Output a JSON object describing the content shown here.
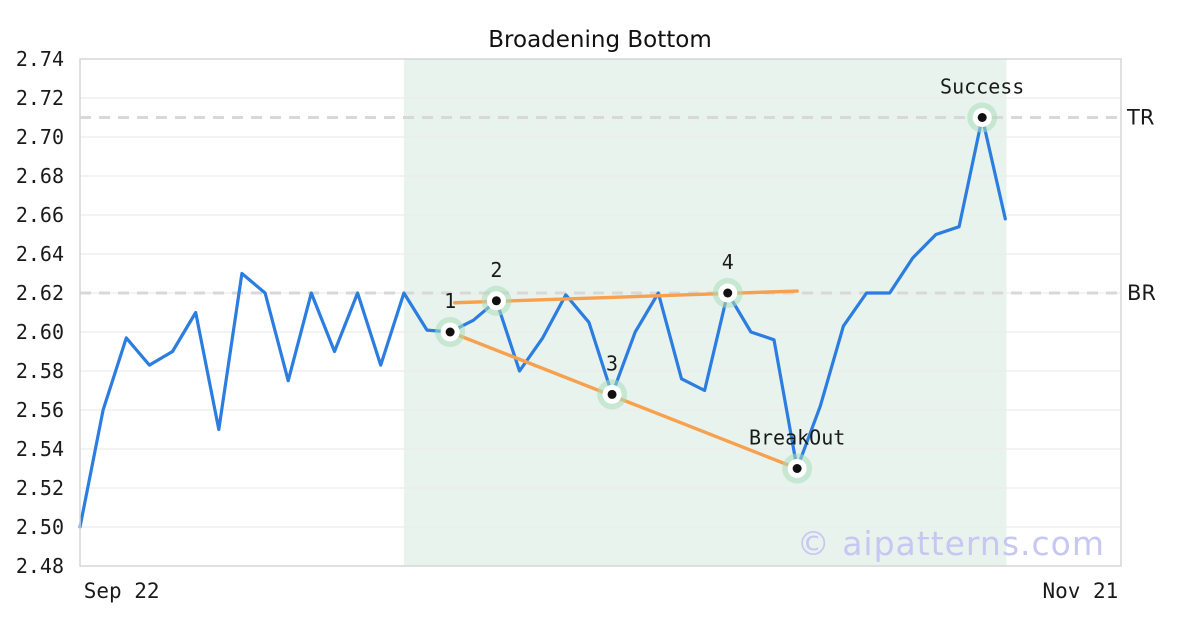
{
  "title": "Broadening Bottom",
  "watermark": "© aipatterns.com",
  "colors": {
    "price_line": "#2b7de0",
    "trendline": "#f7a14f",
    "pattern_region": "#e8f3ee",
    "level_dash": "#d8d8d8",
    "grid": "#ececec",
    "frame": "#d4d6d8",
    "marker_halo": "#a9dcbb",
    "marker_dot": "#111111",
    "text": "#1a1a1a",
    "watermark": "#c6c7f2"
  },
  "chart_data": {
    "type": "line",
    "title": "Broadening Bottom",
    "xlabel": "",
    "ylabel": "",
    "y_axis": {
      "min": 2.48,
      "max": 2.74,
      "step": 0.02,
      "decimals": 2
    },
    "x_axis": {
      "tick_labels": [
        {
          "label": "Sep 22",
          "pos": 0.04
        },
        {
          "label": "Nov 21",
          "pos": 0.961
        }
      ],
      "domain_index_max": 45
    },
    "grid": "horizontal-only",
    "series": [
      {
        "name": "price",
        "values": [
          2.5,
          2.56,
          2.597,
          2.583,
          2.59,
          2.61,
          2.55,
          2.63,
          2.62,
          2.575,
          2.62,
          2.59,
          2.62,
          2.583,
          2.62,
          2.601,
          2.6,
          2.606,
          2.616,
          2.58,
          2.597,
          2.619,
          2.605,
          2.568,
          2.6,
          2.62,
          2.576,
          2.57,
          2.62,
          2.6,
          2.596,
          2.53,
          2.562,
          2.603,
          2.62,
          2.62,
          2.638,
          2.65,
          2.654,
          2.71,
          2.658
        ]
      }
    ],
    "pattern_region": {
      "start_index": 14,
      "end_index": 40.05
    },
    "levels": [
      {
        "name": "TR",
        "value": 2.71
      },
      {
        "name": "BR",
        "value": 2.62
      }
    ],
    "trendlines": [
      {
        "name": "upper",
        "from_index": 16.2,
        "from_value": 2.615,
        "to_index": 31.0,
        "to_value": 2.621
      },
      {
        "name": "lower",
        "from_index": 16.0,
        "from_value": 2.6,
        "to_index": 31.0,
        "to_value": 2.53
      }
    ],
    "annotated_points": [
      {
        "label": "1",
        "index": 16,
        "value": 2.6
      },
      {
        "label": "2",
        "index": 18,
        "value": 2.616
      },
      {
        "label": "3",
        "index": 23,
        "value": 2.568
      },
      {
        "label": "4",
        "index": 28,
        "value": 2.62
      },
      {
        "label": "BreakOut",
        "index": 31,
        "value": 2.53
      },
      {
        "label": "Success",
        "index": 39,
        "value": 2.71
      }
    ]
  }
}
